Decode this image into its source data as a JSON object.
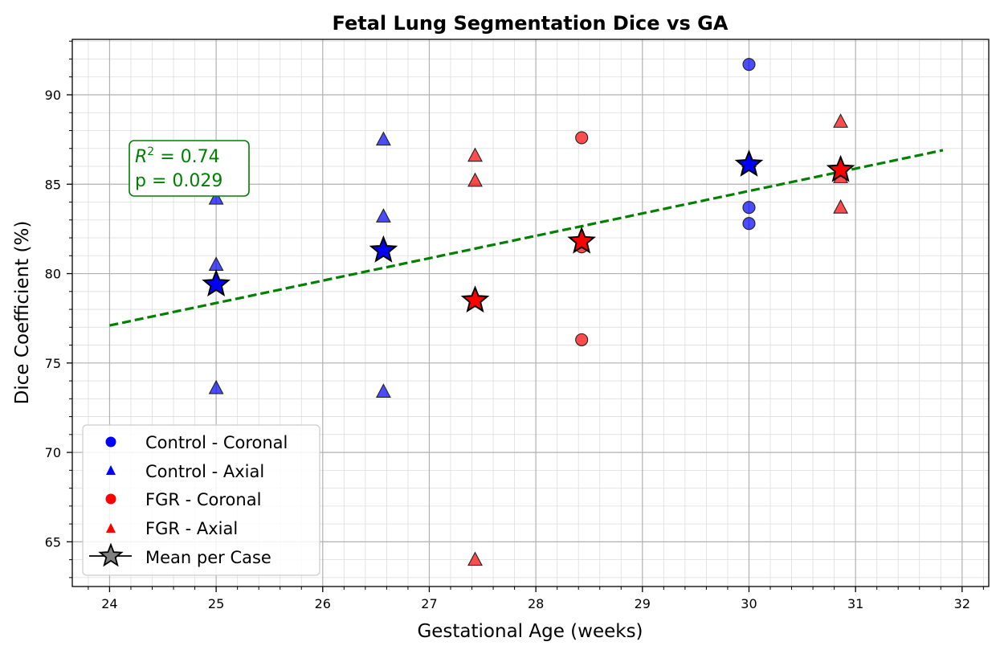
{
  "chart_data": {
    "type": "scatter",
    "title": "Fetal Lung Segmentation Dice vs GA",
    "xlabel": "Gestational Age (weeks)",
    "ylabel": "Dice Coefficient (%)",
    "xlim": [
      23.65,
      32.25
    ],
    "ylim": [
      62.5,
      93.1
    ],
    "xticks": [
      24,
      25,
      26,
      27,
      28,
      29,
      30,
      31,
      32
    ],
    "yticks": [
      65,
      70,
      75,
      80,
      85,
      90
    ],
    "grid": true,
    "legend_position": "lower-left",
    "series": [
      {
        "name": "Control - Coronal",
        "marker": "circle",
        "color": "#0000ff",
        "points": [
          [
            30.0,
            91.7
          ],
          [
            30.0,
            83.7
          ],
          [
            30.0,
            82.8
          ]
        ]
      },
      {
        "name": "Control - Axial",
        "marker": "triangle",
        "color": "#0000ff",
        "points": [
          [
            25.0,
            84.2
          ],
          [
            25.0,
            80.5
          ],
          [
            25.0,
            73.6
          ],
          [
            26.57,
            87.5
          ],
          [
            26.57,
            83.2
          ],
          [
            26.57,
            73.4
          ],
          [
            30.0,
            86.3
          ]
        ]
      },
      {
        "name": "FGR - Coronal",
        "marker": "circle",
        "color": "#ff0000",
        "points": [
          [
            28.43,
            87.6
          ],
          [
            28.43,
            81.5
          ],
          [
            28.43,
            76.3
          ]
        ]
      },
      {
        "name": "FGR - Axial",
        "marker": "triangle",
        "color": "#ff0000",
        "points": [
          [
            27.43,
            86.6
          ],
          [
            27.43,
            85.2
          ],
          [
            27.43,
            64.0
          ],
          [
            30.86,
            88.5
          ],
          [
            30.86,
            85.4
          ],
          [
            30.86,
            83.7
          ]
        ]
      },
      {
        "name": "Mean per Case",
        "marker": "star",
        "color": "#808080",
        "points": [
          [
            25.0,
            79.4,
            "#0000ff"
          ],
          [
            26.57,
            81.3,
            "#0000ff"
          ],
          [
            27.43,
            78.5,
            "#ff0000"
          ],
          [
            28.43,
            81.8,
            "#ff0000"
          ],
          [
            30.0,
            86.1,
            "#0000ff"
          ],
          [
            30.86,
            85.8,
            "#ff0000"
          ]
        ]
      }
    ],
    "trendline": {
      "x": [
        24.0,
        31.82
      ],
      "y": [
        77.1,
        86.9
      ],
      "color": "#008000",
      "style": "dashed"
    },
    "annotation": {
      "line1_var": "R",
      "line1_sup": "2",
      "line1_rest": " = 0.74",
      "line2": "p = 0.029",
      "color": "#008000"
    }
  }
}
